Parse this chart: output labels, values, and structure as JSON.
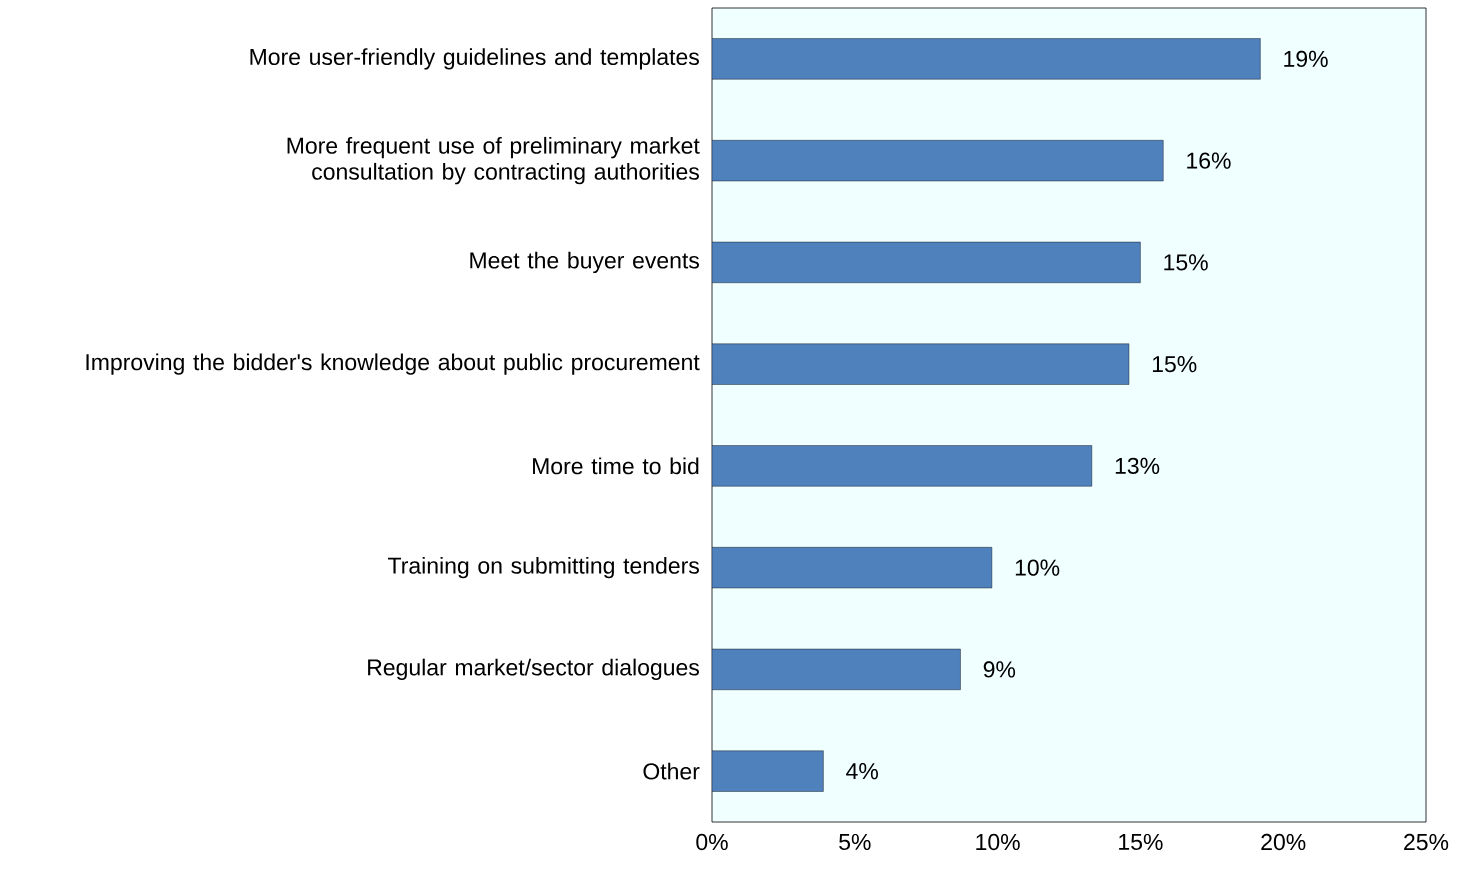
{
  "chart_data": {
    "type": "bar",
    "orientation": "horizontal",
    "categories": [
      "More user-friendly guidelines and templates",
      "More frequent use of preliminary market consultation by contracting authorities",
      "Meet the buyer events",
      "Improving the bidder's knowledge about public procurement",
      "More time to bid",
      "Training on submitting tenders",
      "Regular market/sector dialogues",
      "Other"
    ],
    "values": [
      19.2,
      15.8,
      15.0,
      14.6,
      13.3,
      9.8,
      8.7,
      3.9
    ],
    "value_labels": [
      "19%",
      "16%",
      "15%",
      "15%",
      "13%",
      "10%",
      "9%",
      "4%"
    ],
    "color": "#4f81bd",
    "xlim": [
      0,
      25
    ],
    "xticks": [
      {
        "value": 0,
        "label": "0%"
      },
      {
        "value": 5,
        "label": "5%"
      },
      {
        "value": 10,
        "label": "10%"
      },
      {
        "value": 15,
        "label": "15%"
      },
      {
        "value": 20,
        "label": "20%"
      },
      {
        "value": 25,
        "label": "25%"
      }
    ],
    "grid": false
  }
}
